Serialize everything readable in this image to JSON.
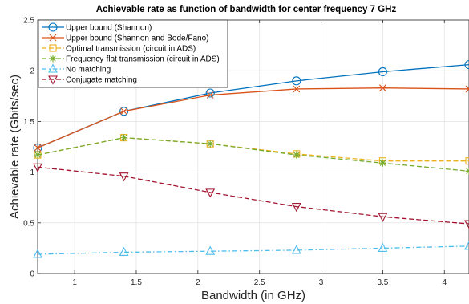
{
  "chart_data": {
    "type": "line",
    "title": "Achievable rate as function of bandwidth for center frequency 7 GHz",
    "xlabel": "Bandwidth (in GHz)",
    "ylabel": "Achievable rate (Gbits/sec)",
    "xlim": [
      0.7,
      4.2
    ],
    "ylim": [
      0,
      2.5
    ],
    "xticks": [
      1,
      1.5,
      2,
      2.5,
      3,
      3.5,
      4
    ],
    "xtick_labels": [
      "1",
      "1.5",
      "2",
      "2.5",
      "3",
      "3.5",
      "4"
    ],
    "yticks": [
      0,
      0.5,
      1,
      1.5,
      2,
      2.5
    ],
    "ytick_labels": [
      "0",
      "0.5",
      "1",
      "1.5",
      "2",
      "2.5"
    ],
    "grid": true,
    "legend_position": "top-left",
    "x": [
      0.7,
      1.4,
      2.1,
      2.8,
      3.5,
      4.2
    ],
    "series": [
      {
        "name": "Upper bound (Shannon)",
        "color": "#0072BD",
        "dash": "solid",
        "marker": "circle",
        "values": [
          1.24,
          1.6,
          1.78,
          1.9,
          1.99,
          2.06
        ]
      },
      {
        "name": "Upper bound (Shannon and Bode/Fano)",
        "color": "#D95319",
        "dash": "solid",
        "marker": "x",
        "values": [
          1.24,
          1.6,
          1.76,
          1.82,
          1.83,
          1.82
        ]
      },
      {
        "name": "Optimal transmission (circuit in ADS)",
        "color": "#EDB120",
        "dash": "dash",
        "marker": "square",
        "values": [
          1.17,
          1.34,
          1.28,
          1.18,
          1.11,
          1.11
        ]
      },
      {
        "name": "Frequency-flat transmission (circuit in ADS)",
        "color": "#77AC30",
        "dash": "dash",
        "marker": "asterisk",
        "values": [
          1.17,
          1.34,
          1.28,
          1.17,
          1.09,
          1.01
        ]
      },
      {
        "name": "No matching",
        "color": "#4DBEEE",
        "dash": "dashdot",
        "marker": "triangle-up",
        "values": [
          0.19,
          0.21,
          0.22,
          0.23,
          0.25,
          0.27
        ]
      },
      {
        "name": "Conjugate matching",
        "color": "#A2142F",
        "dash": "dash",
        "marker": "triangle-down",
        "values": [
          1.05,
          0.96,
          0.8,
          0.66,
          0.56,
          0.49
        ]
      }
    ]
  }
}
